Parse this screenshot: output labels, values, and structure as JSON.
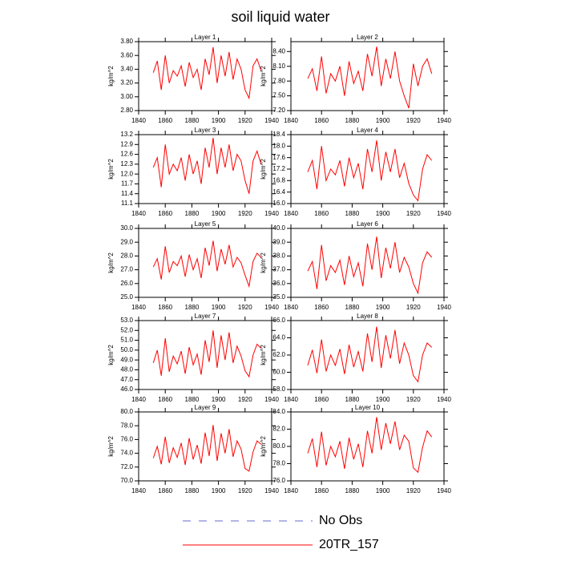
{
  "title": "soil liquid water",
  "legend": [
    {
      "name": "No Obs",
      "color": "#6a6ad0",
      "dash": true
    },
    {
      "name": "20TR_157",
      "color": "#ff0000",
      "dash": false
    }
  ],
  "chart_data": [
    {
      "type": "line",
      "title": "Layer 1",
      "ylabel": "kg/m^2",
      "x": [
        1851,
        1854,
        1857,
        1860,
        1863,
        1866,
        1869,
        1872,
        1875,
        1878,
        1881,
        1884,
        1887,
        1890,
        1893,
        1896,
        1899,
        1902,
        1905,
        1908,
        1911,
        1914,
        1917,
        1920,
        1923,
        1926,
        1929,
        1932
      ],
      "series": [
        {
          "color": "#ff0000",
          "values": [
            3.35,
            3.52,
            3.1,
            3.6,
            3.2,
            3.38,
            3.3,
            3.45,
            3.15,
            3.5,
            3.28,
            3.4,
            3.1,
            3.55,
            3.32,
            3.72,
            3.2,
            3.6,
            3.3,
            3.65,
            3.25,
            3.55,
            3.4,
            3.1,
            2.98,
            3.45,
            3.55,
            3.38
          ]
        }
      ],
      "xlim": [
        1840,
        1940
      ],
      "xticks": [
        1840,
        1860,
        1880,
        1900,
        1920,
        1940
      ],
      "ylim": [
        2.8,
        3.8
      ],
      "yticks": [
        {
          "value": 2.8,
          "label": "2.80"
        },
        {
          "value": 3.0,
          "label": "3.00"
        },
        {
          "value": 3.2,
          "label": "3.20"
        },
        {
          "value": 3.4,
          "label": "3.40"
        },
        {
          "value": 3.6,
          "label": "3.60"
        },
        {
          "value": 3.8,
          "label": "3.80"
        }
      ]
    },
    {
      "type": "line",
      "title": "Layer 2",
      "ylabel": "kg/m^2",
      "x": [
        1851,
        1854,
        1857,
        1860,
        1863,
        1866,
        1869,
        1872,
        1875,
        1878,
        1881,
        1884,
        1887,
        1890,
        1893,
        1896,
        1899,
        1902,
        1905,
        1908,
        1911,
        1914,
        1917,
        1920,
        1923,
        1926,
        1929,
        1932
      ],
      "series": [
        {
          "color": "#ff0000",
          "values": [
            7.85,
            8.05,
            7.6,
            8.3,
            7.55,
            7.95,
            7.8,
            8.1,
            7.5,
            8.2,
            7.75,
            8.0,
            7.6,
            8.35,
            7.9,
            8.5,
            7.7,
            8.25,
            7.85,
            8.4,
            7.8,
            7.5,
            7.25,
            8.15,
            7.7,
            8.1,
            8.25,
            7.95
          ]
        }
      ],
      "xlim": [
        1840,
        1940
      ],
      "xticks": [
        1840,
        1860,
        1880,
        1900,
        1920,
        1940
      ],
      "ylim": [
        7.2,
        8.6
      ],
      "yticks": [
        {
          "value": 7.2,
          "label": "7.20"
        },
        {
          "value": 7.5,
          "label": "7.50"
        },
        {
          "value": 7.8,
          "label": "7.80"
        },
        {
          "value": 8.1,
          "label": "8.10"
        },
        {
          "value": 8.4,
          "label": "8.40"
        }
      ]
    },
    {
      "type": "line",
      "title": "Layer 3",
      "ylabel": "kg/m^2",
      "x": [
        1851,
        1854,
        1857,
        1860,
        1863,
        1866,
        1869,
        1872,
        1875,
        1878,
        1881,
        1884,
        1887,
        1890,
        1893,
        1896,
        1899,
        1902,
        1905,
        1908,
        1911,
        1914,
        1917,
        1920,
        1923,
        1926,
        1929,
        1932
      ],
      "series": [
        {
          "color": "#ff0000",
          "values": [
            12.2,
            12.5,
            11.6,
            12.9,
            12.0,
            12.3,
            12.1,
            12.5,
            11.8,
            12.6,
            12.0,
            12.4,
            11.7,
            12.8,
            12.2,
            13.1,
            12.0,
            12.8,
            12.2,
            12.9,
            12.1,
            12.6,
            12.4,
            11.8,
            11.4,
            12.4,
            12.7,
            12.3
          ]
        }
      ],
      "xlim": [
        1840,
        1940
      ],
      "xticks": [
        1840,
        1860,
        1880,
        1900,
        1920,
        1940
      ],
      "ylim": [
        11.1,
        13.2
      ],
      "yticks": [
        11.1,
        11.4,
        11.7,
        {
          "value": 12,
          "label": "12.0"
        },
        12.3,
        12.6,
        12.9,
        13.2
      ]
    },
    {
      "type": "line",
      "title": "Layer 4",
      "ylabel": "kg/m^2",
      "x": [
        1851,
        1854,
        1857,
        1860,
        1863,
        1866,
        1869,
        1872,
        1875,
        1878,
        1881,
        1884,
        1887,
        1890,
        1893,
        1896,
        1899,
        1902,
        1905,
        1908,
        1911,
        1914,
        1917,
        1920,
        1923,
        1926,
        1929,
        1932
      ],
      "series": [
        {
          "color": "#ff0000",
          "values": [
            17.1,
            17.5,
            16.5,
            18.0,
            16.8,
            17.2,
            17.0,
            17.5,
            16.6,
            17.6,
            16.9,
            17.4,
            16.5,
            17.9,
            17.1,
            18.2,
            16.8,
            17.8,
            17.1,
            17.9,
            16.9,
            17.4,
            16.7,
            16.3,
            16.1,
            17.2,
            17.7,
            17.5
          ]
        }
      ],
      "xlim": [
        1840,
        1940
      ],
      "xticks": [
        1840,
        1860,
        1880,
        1900,
        1920,
        1940
      ],
      "ylim": [
        16,
        18.4
      ],
      "yticks": [
        {
          "value": 16,
          "label": "16.0"
        },
        16.4,
        16.8,
        17.2,
        17.6,
        {
          "value": 18,
          "label": "18.0"
        },
        18.4
      ]
    },
    {
      "type": "line",
      "title": "Layer 5",
      "ylabel": "kg/m^2",
      "x": [
        1851,
        1854,
        1857,
        1860,
        1863,
        1866,
        1869,
        1872,
        1875,
        1878,
        1881,
        1884,
        1887,
        1890,
        1893,
        1896,
        1899,
        1902,
        1905,
        1908,
        1911,
        1914,
        1917,
        1920,
        1923,
        1926,
        1929,
        1932
      ],
      "series": [
        {
          "color": "#ff0000",
          "values": [
            27.2,
            27.8,
            26.3,
            28.7,
            26.8,
            27.6,
            27.3,
            28.0,
            26.5,
            28.1,
            27.0,
            27.8,
            26.4,
            28.6,
            27.3,
            29.1,
            26.9,
            28.5,
            27.4,
            28.8,
            27.2,
            27.9,
            27.5,
            26.6,
            25.8,
            27.6,
            28.2,
            27.9
          ]
        }
      ],
      "xlim": [
        1840,
        1940
      ],
      "xticks": [
        1840,
        1860,
        1880,
        1900,
        1920,
        1940
      ],
      "ylim": [
        25,
        30
      ],
      "yticks": [
        {
          "value": 25,
          "label": "25.0"
        },
        {
          "value": 26,
          "label": "26.0"
        },
        {
          "value": 27,
          "label": "27.0"
        },
        {
          "value": 28,
          "label": "28.0"
        },
        {
          "value": 29,
          "label": "29.0"
        },
        {
          "value": 30,
          "label": "30.0"
        }
      ]
    },
    {
      "type": "line",
      "title": "Layer 6",
      "ylabel": "kg/m^2",
      "x": [
        1851,
        1854,
        1857,
        1860,
        1863,
        1866,
        1869,
        1872,
        1875,
        1878,
        1881,
        1884,
        1887,
        1890,
        1893,
        1896,
        1899,
        1902,
        1905,
        1908,
        1911,
        1914,
        1917,
        1920,
        1923,
        1926,
        1929,
        1932
      ],
      "series": [
        {
          "color": "#ff0000",
          "values": [
            36.9,
            37.6,
            35.6,
            38.8,
            36.2,
            37.3,
            36.8,
            37.7,
            35.9,
            38.0,
            36.5,
            37.5,
            35.8,
            38.9,
            37.0,
            39.4,
            36.4,
            38.6,
            37.1,
            39.0,
            36.8,
            37.9,
            37.2,
            36.0,
            35.3,
            37.5,
            38.3,
            37.9
          ]
        }
      ],
      "xlim": [
        1840,
        1940
      ],
      "xticks": [
        1840,
        1860,
        1880,
        1900,
        1920,
        1940
      ],
      "ylim": [
        35,
        40
      ],
      "yticks": [
        {
          "value": 35,
          "label": "35.0"
        },
        {
          "value": 36,
          "label": "36.0"
        },
        {
          "value": 37,
          "label": "37.0"
        },
        {
          "value": 38,
          "label": "38.0"
        },
        {
          "value": 39,
          "label": "39.0"
        },
        {
          "value": 40,
          "label": "40.0"
        }
      ]
    },
    {
      "type": "line",
      "title": "Layer 7",
      "ylabel": "kg/m^2",
      "x": [
        1851,
        1854,
        1857,
        1860,
        1863,
        1866,
        1869,
        1872,
        1875,
        1878,
        1881,
        1884,
        1887,
        1890,
        1893,
        1896,
        1899,
        1902,
        1905,
        1908,
        1911,
        1914,
        1917,
        1920,
        1923,
        1926,
        1929,
        1932
      ],
      "series": [
        {
          "color": "#ff0000",
          "values": [
            48.7,
            50.0,
            47.4,
            51.2,
            47.8,
            49.4,
            48.6,
            49.9,
            47.6,
            50.3,
            48.5,
            49.6,
            47.5,
            51.0,
            48.8,
            52.0,
            48.2,
            51.5,
            49.0,
            51.8,
            48.7,
            50.4,
            49.4,
            47.9,
            47.3,
            49.5,
            50.6,
            50.2
          ]
        }
      ],
      "xlim": [
        1840,
        1940
      ],
      "xticks": [
        1840,
        1860,
        1880,
        1900,
        1920,
        1940
      ],
      "ylim": [
        46,
        53
      ],
      "yticks": [
        {
          "value": 46,
          "label": "46.0"
        },
        {
          "value": 47,
          "label": "47.0"
        },
        {
          "value": 48,
          "label": "48.0"
        },
        {
          "value": 49,
          "label": "49.0"
        },
        {
          "value": 50,
          "label": "50.0"
        },
        {
          "value": 51,
          "label": "51.0"
        },
        {
          "value": 52,
          "label": "52.0"
        },
        {
          "value": 53,
          "label": "53.0"
        }
      ]
    },
    {
      "type": "line",
      "title": "Layer 8",
      "ylabel": "kg/m^2",
      "x": [
        1851,
        1854,
        1857,
        1860,
        1863,
        1866,
        1869,
        1872,
        1875,
        1878,
        1881,
        1884,
        1887,
        1890,
        1893,
        1896,
        1899,
        1902,
        1905,
        1908,
        1911,
        1914,
        1917,
        1920,
        1923,
        1926,
        1929,
        1932
      ],
      "series": [
        {
          "color": "#ff0000",
          "values": [
            60.8,
            62.6,
            59.9,
            63.8,
            60.1,
            62.0,
            60.8,
            62.7,
            59.8,
            63.2,
            60.6,
            62.4,
            60.1,
            64.5,
            61.2,
            65.3,
            60.5,
            64.3,
            61.6,
            64.9,
            61.0,
            63.4,
            62.0,
            59.6,
            58.9,
            62.0,
            63.4,
            62.9
          ]
        }
      ],
      "xlim": [
        1840,
        1940
      ],
      "xticks": [
        1840,
        1860,
        1880,
        1900,
        1920,
        1940
      ],
      "ylim": [
        58,
        66
      ],
      "yticks": [
        {
          "value": 58,
          "label": "58.0"
        },
        {
          "value": 60,
          "label": "60.0"
        },
        {
          "value": 62,
          "label": "62.0"
        },
        {
          "value": 64,
          "label": "64.0"
        },
        {
          "value": 66,
          "label": "66.0"
        }
      ]
    },
    {
      "type": "line",
      "title": "Layer 9",
      "ylabel": "kg/m^2",
      "x": [
        1851,
        1854,
        1857,
        1860,
        1863,
        1866,
        1869,
        1872,
        1875,
        1878,
        1881,
        1884,
        1887,
        1890,
        1893,
        1896,
        1899,
        1902,
        1905,
        1908,
        1911,
        1914,
        1917,
        1920,
        1923,
        1926,
        1929,
        1932
      ],
      "series": [
        {
          "color": "#ff0000",
          "values": [
            73.3,
            75.0,
            72.4,
            76.4,
            72.6,
            74.8,
            73.4,
            75.5,
            72.3,
            76.2,
            73.1,
            75.2,
            72.5,
            77.0,
            73.6,
            78.1,
            72.9,
            76.9,
            74.0,
            77.5,
            73.5,
            75.8,
            74.6,
            71.8,
            71.4,
            74.2,
            75.8,
            75.3
          ]
        }
      ],
      "xlim": [
        1840,
        1940
      ],
      "xticks": [
        1840,
        1860,
        1880,
        1900,
        1920,
        1940
      ],
      "ylim": [
        70,
        80
      ],
      "yticks": [
        {
          "value": 70,
          "label": "70.0"
        },
        {
          "value": 72,
          "label": "72.0"
        },
        {
          "value": 74,
          "label": "74.0"
        },
        {
          "value": 76,
          "label": "76.0"
        },
        {
          "value": 78,
          "label": "78.0"
        },
        {
          "value": 80,
          "label": "80.0"
        }
      ]
    },
    {
      "type": "line",
      "title": "Layer 10",
      "ylabel": "kg/m^2",
      "x": [
        1851,
        1854,
        1857,
        1860,
        1863,
        1866,
        1869,
        1872,
        1875,
        1878,
        1881,
        1884,
        1887,
        1890,
        1893,
        1896,
        1899,
        1902,
        1905,
        1908,
        1911,
        1914,
        1917,
        1920,
        1923,
        1926,
        1929,
        1932
      ],
      "series": [
        {
          "color": "#ff0000",
          "values": [
            79.2,
            80.9,
            77.6,
            81.7,
            77.8,
            80.0,
            78.8,
            80.6,
            77.4,
            81.0,
            78.5,
            80.3,
            77.6,
            81.8,
            79.2,
            83.4,
            79.6,
            82.7,
            80.3,
            82.9,
            79.6,
            81.3,
            80.6,
            77.5,
            77.0,
            79.9,
            81.8,
            81.1
          ]
        }
      ],
      "xlim": [
        1840,
        1940
      ],
      "xticks": [
        1840,
        1860,
        1880,
        1900,
        1920,
        1940
      ],
      "ylim": [
        76,
        84
      ],
      "yticks": [
        {
          "value": 76,
          "label": "76.0"
        },
        {
          "value": 78,
          "label": "78.0"
        },
        {
          "value": 80,
          "label": "80.0"
        },
        {
          "value": 82,
          "label": "82.0"
        },
        {
          "value": 84,
          "label": "84.0"
        }
      ]
    }
  ]
}
